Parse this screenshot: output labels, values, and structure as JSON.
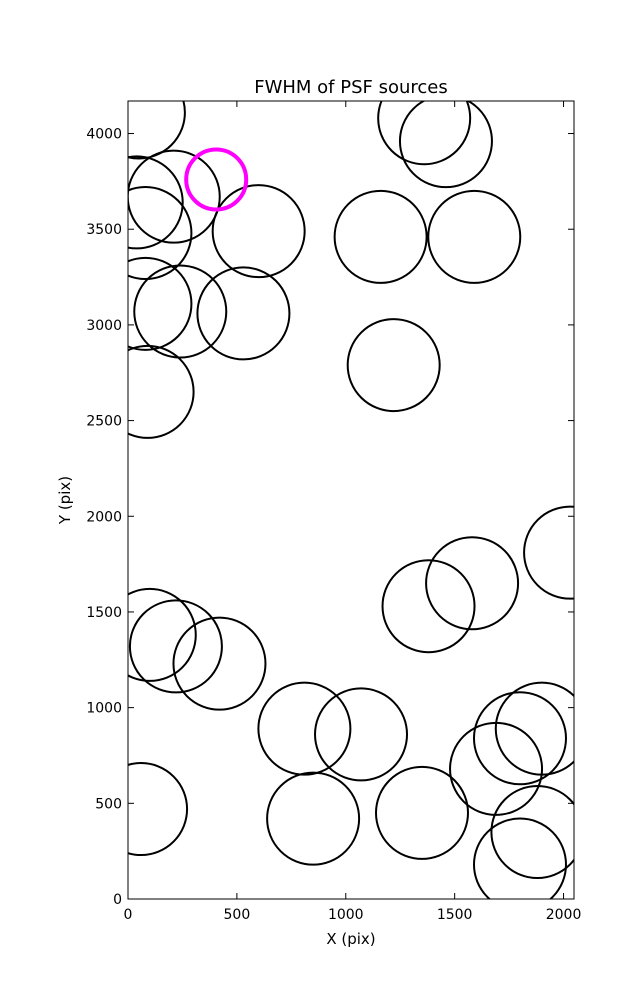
{
  "chart_data": {
    "type": "scatter",
    "title": "FWHM of PSF sources",
    "xlabel": "X (pix)",
    "ylabel": "Y (pix)",
    "xlim": [
      0,
      2048
    ],
    "ylim": [
      0,
      4170
    ],
    "xticks": [
      0,
      500,
      1000,
      1500,
      2000
    ],
    "yticks": [
      0,
      500,
      1000,
      1500,
      2000,
      2500,
      3000,
      3500,
      4000
    ],
    "grid": false,
    "marker": "open circle",
    "marker_color": "#000000",
    "highlight_color": "#ff00ff",
    "series": [
      {
        "points": [
          {
            "x": 50,
            "y": 4110
          },
          {
            "x": 40,
            "y": 3640
          },
          {
            "x": 210,
            "y": 3670
          },
          {
            "x": 80,
            "y": 3480
          },
          {
            "x": 600,
            "y": 3490
          },
          {
            "x": 80,
            "y": 3110
          },
          {
            "x": 240,
            "y": 3070
          },
          {
            "x": 530,
            "y": 3060
          },
          {
            "x": 90,
            "y": 2650
          },
          {
            "x": 1360,
            "y": 4080
          },
          {
            "x": 1460,
            "y": 3960
          },
          {
            "x": 1160,
            "y": 3460
          },
          {
            "x": 1590,
            "y": 3460
          },
          {
            "x": 1220,
            "y": 2790
          },
          {
            "x": 2030,
            "y": 1810
          },
          {
            "x": 1580,
            "y": 1650
          },
          {
            "x": 1380,
            "y": 1530
          },
          {
            "x": 100,
            "y": 1380
          },
          {
            "x": 220,
            "y": 1320
          },
          {
            "x": 420,
            "y": 1230
          },
          {
            "x": 810,
            "y": 890
          },
          {
            "x": 1070,
            "y": 860
          },
          {
            "x": 1900,
            "y": 890
          },
          {
            "x": 1800,
            "y": 840
          },
          {
            "x": 1690,
            "y": 680
          },
          {
            "x": 60,
            "y": 470
          },
          {
            "x": 850,
            "y": 420
          },
          {
            "x": 1350,
            "y": 450
          },
          {
            "x": 1880,
            "y": 350
          },
          {
            "x": 1800,
            "y": 180
          }
        ]
      }
    ],
    "highlight": {
      "x": 405,
      "y": 3760
    }
  }
}
